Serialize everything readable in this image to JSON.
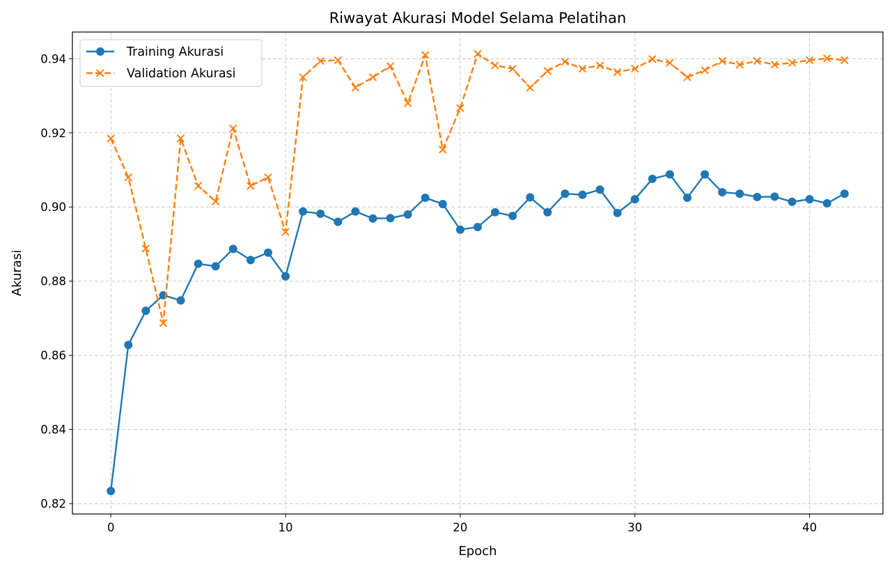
{
  "chart_data": {
    "type": "line",
    "title": "Riwayat Akurasi Model Selama Pelatihan",
    "xlabel": "Epoch",
    "ylabel": "Akurasi",
    "xlim": [
      -2.2,
      44.2
    ],
    "ylim": [
      0.8172,
      0.9472
    ],
    "xticks": [
      0,
      10,
      20,
      30,
      40
    ],
    "yticks": [
      0.82,
      0.84,
      0.86,
      0.88,
      0.9,
      0.92,
      0.94
    ],
    "xtick_labels": [
      "0",
      "10",
      "20",
      "30",
      "40"
    ],
    "ytick_labels": [
      "0.82",
      "0.84",
      "0.86",
      "0.88",
      "0.90",
      "0.92",
      "0.94"
    ],
    "grid": true,
    "legend_position": "top-left",
    "x": [
      0,
      1,
      2,
      3,
      4,
      5,
      6,
      7,
      8,
      9,
      10,
      11,
      12,
      13,
      14,
      15,
      16,
      17,
      18,
      19,
      20,
      21,
      22,
      23,
      24,
      25,
      26,
      27,
      28,
      29,
      30,
      31,
      32,
      33,
      34,
      35,
      36,
      37,
      38,
      39,
      40,
      41,
      42
    ],
    "series": [
      {
        "name": "Training Akurasi",
        "color": "#1f77b4",
        "style": "solid",
        "marker": "circle",
        "values": [
          0.8234,
          0.8628,
          0.872,
          0.8762,
          0.8748,
          0.8847,
          0.884,
          0.8887,
          0.8857,
          0.8877,
          0.8813,
          0.8988,
          0.8982,
          0.896,
          0.8988,
          0.8969,
          0.897,
          0.898,
          0.9025,
          0.9008,
          0.8939,
          0.8946,
          0.8986,
          0.8976,
          0.9026,
          0.8986,
          0.9036,
          0.9033,
          0.9047,
          0.8984,
          0.9021,
          0.9076,
          0.9088,
          0.9025,
          0.9088,
          0.904,
          0.9036,
          0.9027,
          0.9028,
          0.9014,
          0.9021,
          0.901,
          0.9036
        ]
      },
      {
        "name": "Validation Akurasi",
        "color": "#ff7f0e",
        "style": "dashed",
        "marker": "x",
        "values": [
          0.9185,
          0.908,
          0.8888,
          0.8687,
          0.9185,
          0.9057,
          0.9015,
          0.9212,
          0.9057,
          0.908,
          0.8933,
          0.935,
          0.9394,
          0.9396,
          0.9322,
          0.935,
          0.938,
          0.928,
          0.941,
          0.9155,
          0.9267,
          0.9413,
          0.9382,
          0.9373,
          0.9322,
          0.9367,
          0.9392,
          0.9373,
          0.9382,
          0.9364,
          0.9373,
          0.9399,
          0.9389,
          0.935,
          0.9369,
          0.9394,
          0.9384,
          0.9394,
          0.9384,
          0.9389,
          0.9396,
          0.9401,
          0.9396
        ]
      }
    ]
  }
}
